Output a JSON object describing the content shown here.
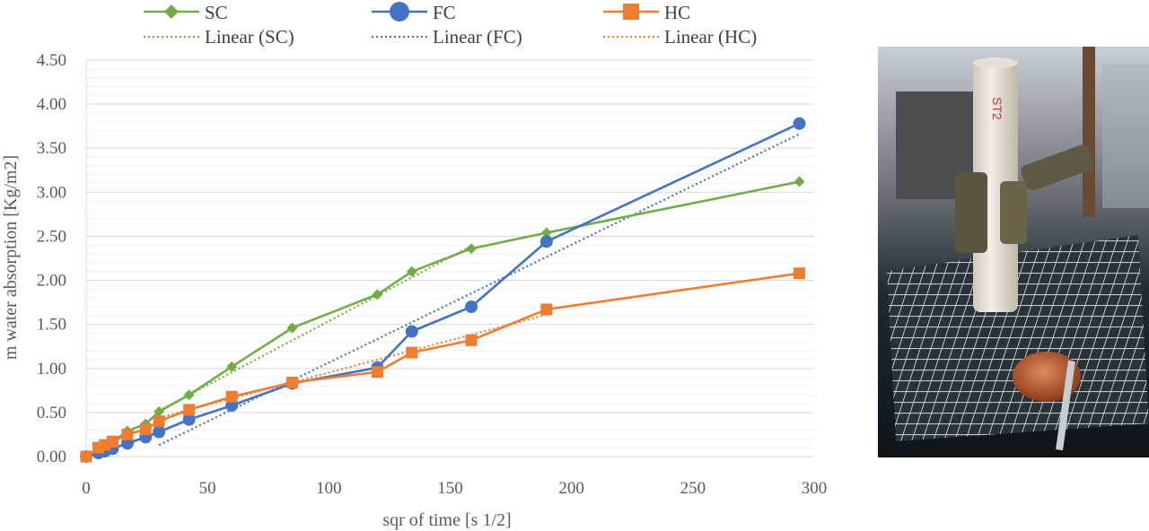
{
  "chart_data": {
    "type": "line",
    "xlabel": "sqr of time [s 1/2]",
    "ylabel": "m water absorption [Kg/m2]",
    "xlim": [
      0,
      300
    ],
    "ylim": [
      0,
      4.5
    ],
    "x_ticks": [
      "0",
      "50",
      "100",
      "150",
      "200",
      "250",
      "300"
    ],
    "y_ticks": [
      "0.00",
      "0.50",
      "1.00",
      "1.50",
      "2.00",
      "2.50",
      "3.00",
      "3.50",
      "4.00",
      "4.50"
    ],
    "grid": true,
    "legend_position": "top",
    "series": [
      {
        "name": "SC",
        "color": "#70AD47",
        "marker": "diamond",
        "x": [
          0,
          5,
          7.7,
          10.9,
          17,
          24.5,
          30,
          42.4,
          60,
          84.9,
          120,
          134.2,
          158.7,
          189.7,
          293.9
        ],
        "y": [
          0,
          0.08,
          0.12,
          0.17,
          0.29,
          0.37,
          0.51,
          0.7,
          1.02,
          1.46,
          1.84,
          2.1,
          2.36,
          2.54,
          3.12
        ]
      },
      {
        "name": "FC",
        "color": "#4472C4",
        "marker": "circle",
        "x": [
          0,
          5,
          7.7,
          10.9,
          17,
          24.5,
          30,
          42.4,
          60,
          84.9,
          120,
          134.2,
          158.7,
          189.7,
          293.9
        ],
        "y": [
          0,
          0.04,
          0.06,
          0.09,
          0.15,
          0.22,
          0.28,
          0.42,
          0.58,
          0.83,
          1.01,
          1.42,
          1.7,
          2.44,
          3.78
        ]
      },
      {
        "name": "HC",
        "color": "#ED7D31",
        "marker": "square",
        "x": [
          0,
          5,
          7.7,
          10.9,
          17,
          24.5,
          30,
          42.4,
          60,
          84.9,
          120,
          134.2,
          158.7,
          189.7,
          293.9
        ],
        "y": [
          0,
          0.1,
          0.13,
          0.17,
          0.25,
          0.31,
          0.4,
          0.53,
          0.68,
          0.84,
          0.96,
          1.18,
          1.32,
          1.67,
          2.08
        ]
      }
    ],
    "trendlines": [
      {
        "name": "Linear (SC)",
        "color": "#70AD47",
        "x": [
          30,
          158.7
        ],
        "y": [
          0.52,
          2.39
        ]
      },
      {
        "name": "Linear (FC)",
        "color": "#4472C4",
        "x": [
          30,
          293.9
        ],
        "y": [
          0.13,
          3.66
        ]
      },
      {
        "name": "Linear (HC)",
        "color": "#ED7D31",
        "x": [
          30,
          189.7
        ],
        "y": [
          0.44,
          1.61
        ]
      }
    ]
  },
  "photo": {
    "label": "ST2"
  }
}
